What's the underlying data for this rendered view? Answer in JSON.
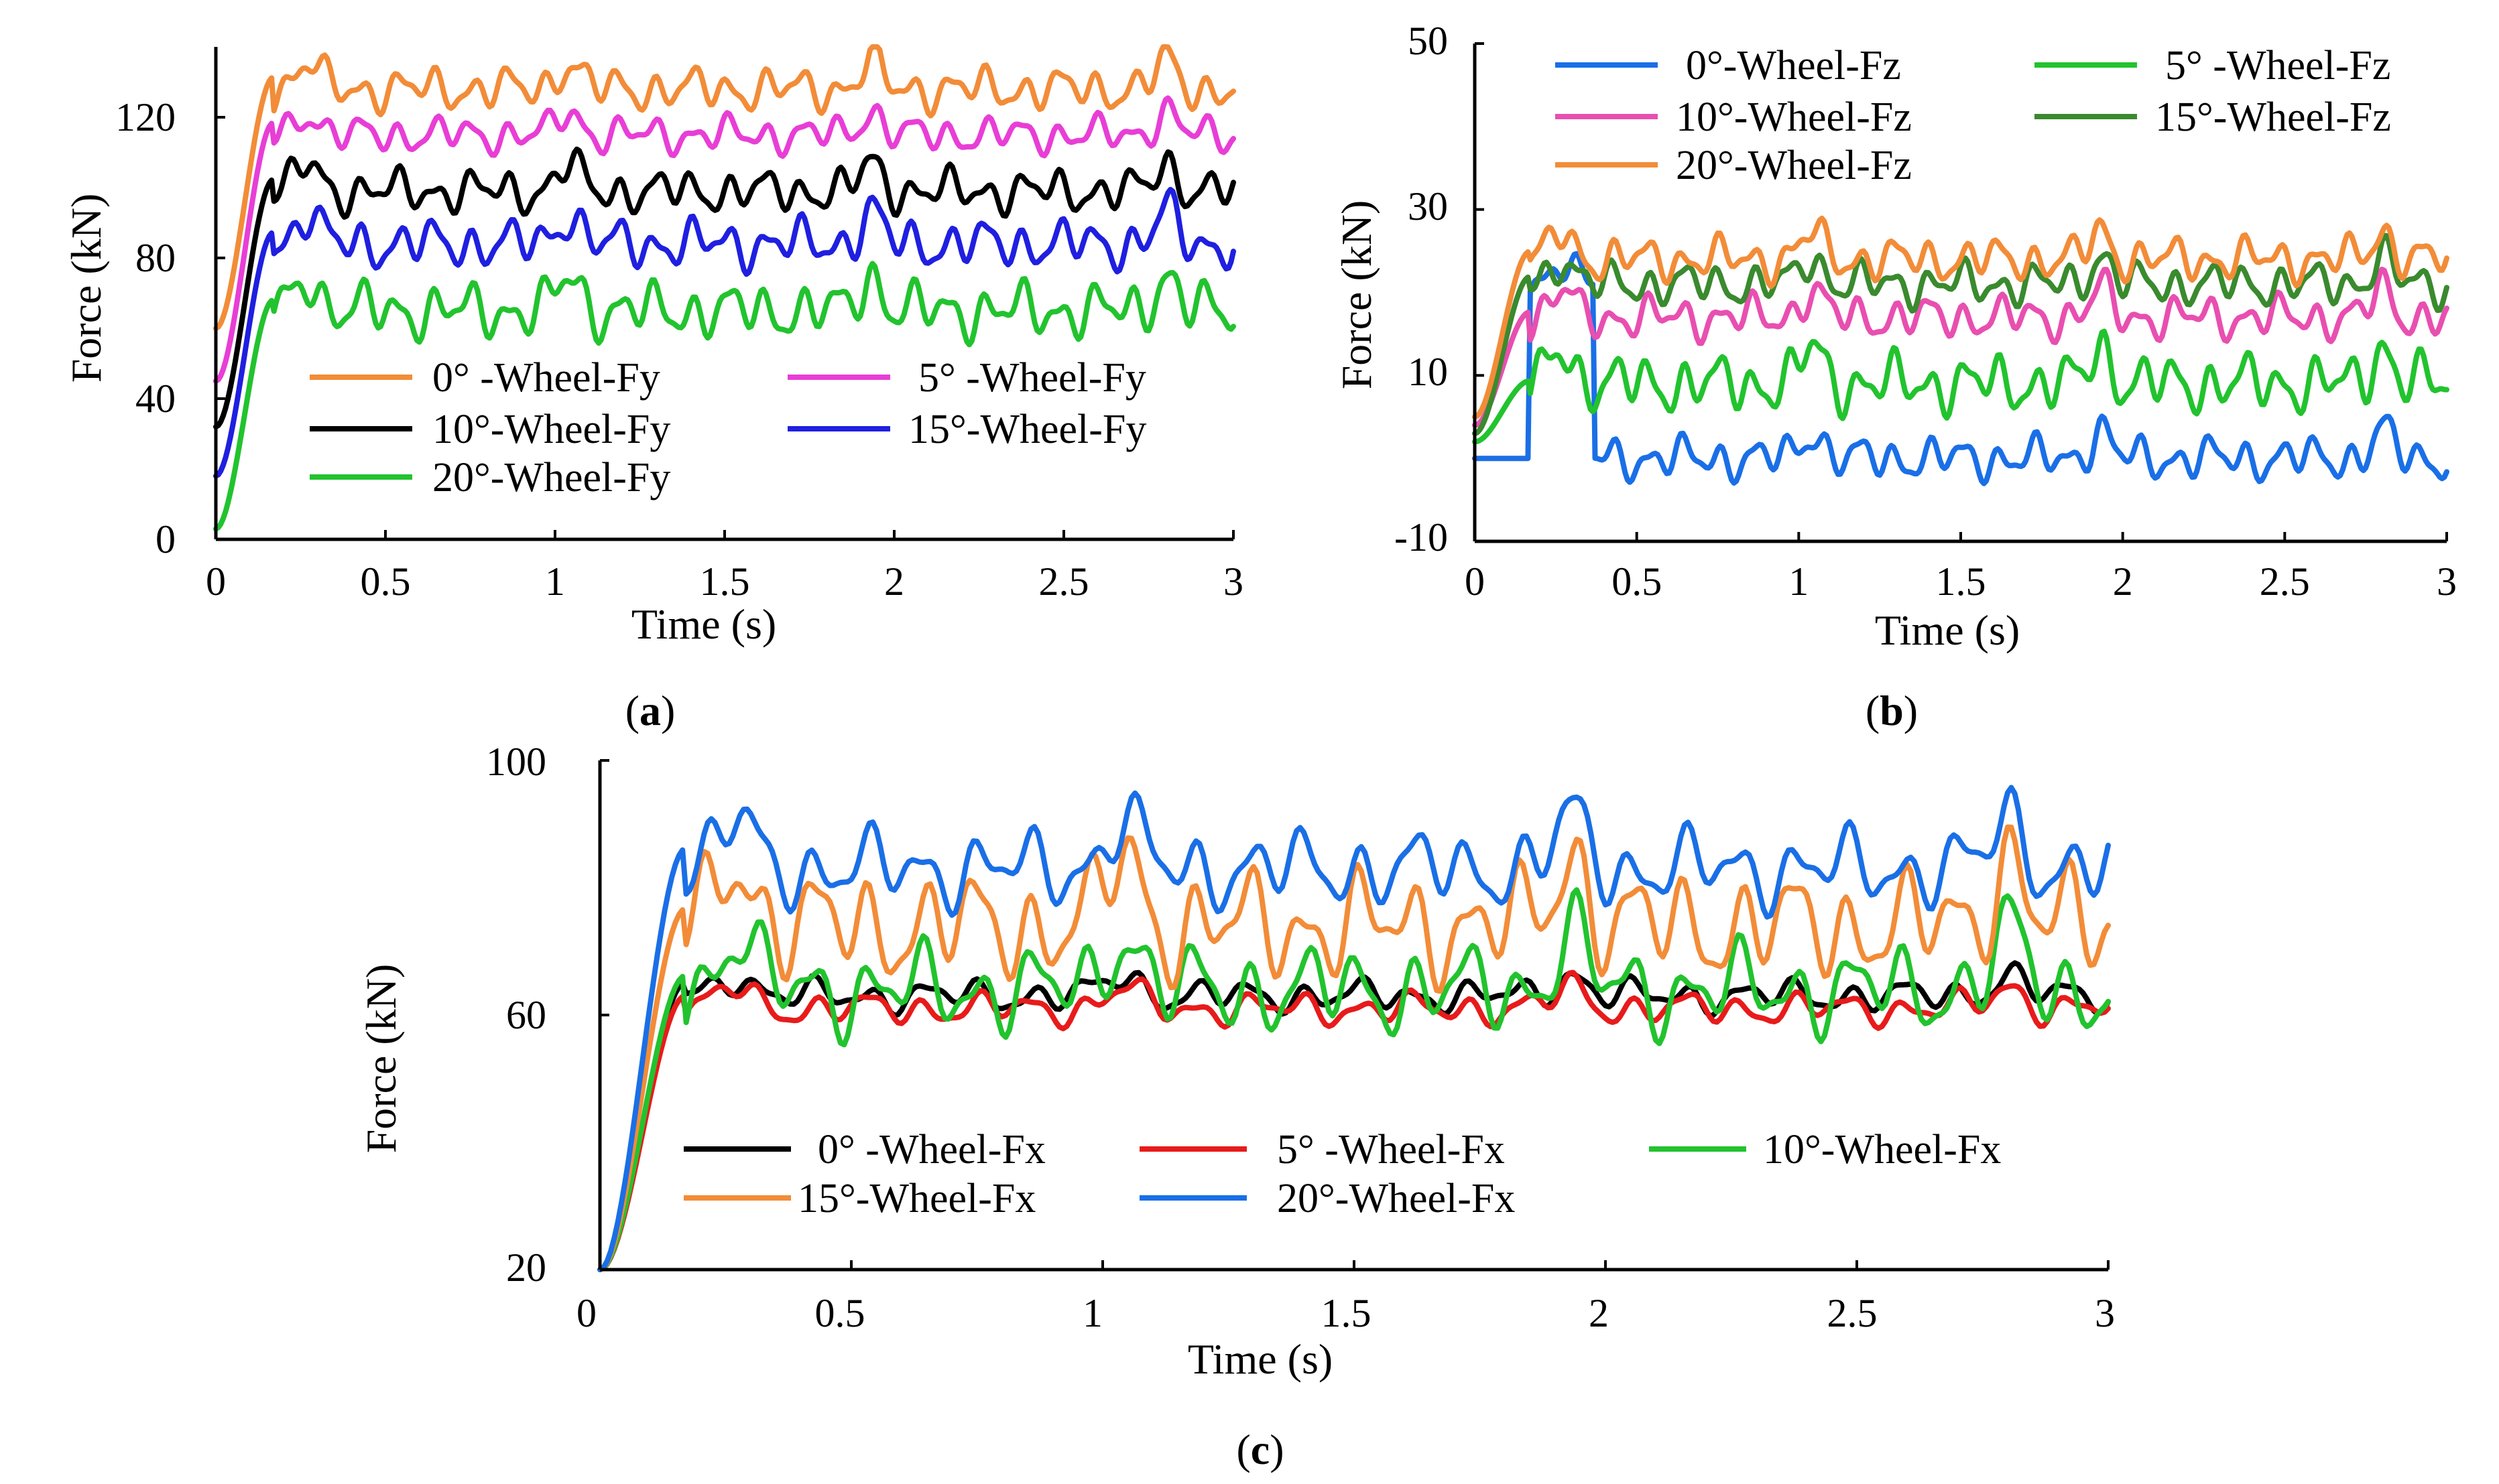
{
  "chart_data": [
    {
      "panel": "a",
      "caption_open": "(",
      "caption_letter": "a",
      "caption_close": ")",
      "type": "line",
      "title": "",
      "xlabel": "Time (s)",
      "ylabel": "Force (kN)",
      "xlim": [
        0,
        3
      ],
      "ylim": [
        0,
        140
      ],
      "xticks": [
        "0",
        "0.5",
        "1",
        "1.5",
        "2",
        "2.5",
        "3"
      ],
      "yticks": [
        "0",
        "40",
        "80",
        "120"
      ],
      "legend_position": "bottom-center",
      "series": [
        {
          "name": "0° -Wheel-Fy",
          "color": "#F28C38",
          "start": 60,
          "mean": 128,
          "amp": 7,
          "dip": 0
        },
        {
          "name": "5° -Wheel-Fy",
          "color": "#E83ED6",
          "start": 45,
          "mean": 115,
          "amp": 6,
          "dip": 0
        },
        {
          "name": "10°-Wheel-Fy",
          "color": "#000000",
          "start": 32,
          "mean": 99,
          "amp": 7,
          "dip": 0
        },
        {
          "name": "15°-Wheel-Fy",
          "color": "#1F1FE0",
          "start": 18,
          "mean": 84,
          "amp": 8,
          "dip": 0
        },
        {
          "name": "20°-Wheel-Fy",
          "color": "#22C32E",
          "start": 3,
          "mean": 65,
          "amp": 9,
          "dip": 0
        }
      ]
    },
    {
      "panel": "b",
      "caption_open": "(",
      "caption_letter": "b",
      "caption_close": ")",
      "type": "line",
      "title": "",
      "xlabel": "Time (s)",
      "ylabel": "Force (kN)",
      "xlim": [
        0,
        3
      ],
      "ylim": [
        -10,
        50
      ],
      "xticks": [
        "0",
        "0.5",
        "1",
        "1.5",
        "2",
        "2.5",
        "3"
      ],
      "yticks": [
        "-10",
        "10",
        "30",
        "50"
      ],
      "legend_position": "top",
      "series": [
        {
          "name": "0°-Wheel-Fz",
          "color": "#1A6FE6",
          "start": 0,
          "mean": 0,
          "amp": 3,
          "dip": 1
        },
        {
          "name": "5° -Wheel-Fz",
          "color": "#22C32E",
          "start": 2,
          "mean": 9,
          "amp": 4,
          "dip": 0
        },
        {
          "name": "10°-Wheel-Fz",
          "color": "#E84FB0",
          "start": 4,
          "mean": 17,
          "amp": 3,
          "dip": 0
        },
        {
          "name": "15°-Wheel-Fz",
          "color": "#3A8A2E",
          "start": 3,
          "mean": 21,
          "amp": 3,
          "dip": 0
        },
        {
          "name": "20°-Wheel-Fz",
          "color": "#F28C38",
          "start": 5,
          "mean": 24,
          "amp": 3,
          "dip": 0
        }
      ]
    },
    {
      "panel": "c",
      "caption_open": "(",
      "caption_letter": "c",
      "caption_close": ")",
      "type": "line",
      "title": "",
      "xlabel": "Time (s)",
      "ylabel": "Force (kN)",
      "xlim": [
        0,
        3
      ],
      "ylim": [
        20,
        100
      ],
      "xticks": [
        "0",
        "0.5",
        "1",
        "1.5",
        "2",
        "2.5",
        "3"
      ],
      "yticks": [
        "20",
        "60",
        "100"
      ],
      "legend_position": "lower-center",
      "series": [
        {
          "name": "0° -Wheel-Fx",
          "color": "#000000",
          "start": 20,
          "mean": 63,
          "amp": 3,
          "dip": 0
        },
        {
          "name": "5° -Wheel-Fx",
          "color": "#E81B1B",
          "start": 20,
          "mean": 61,
          "amp": 3,
          "dip": 0
        },
        {
          "name": "10°-Wheel-Fx",
          "color": "#22C32E",
          "start": 20,
          "mean": 64,
          "amp": 8,
          "dip": 0
        },
        {
          "name": "15°-Wheel-Fx",
          "color": "#F28C38",
          "start": 20,
          "mean": 74,
          "amp": 10,
          "dip": 0
        },
        {
          "name": "20°-Wheel-Fx",
          "color": "#1A6FE6",
          "start": 20,
          "mean": 83,
          "amp": 7,
          "dip": 0
        }
      ]
    }
  ]
}
